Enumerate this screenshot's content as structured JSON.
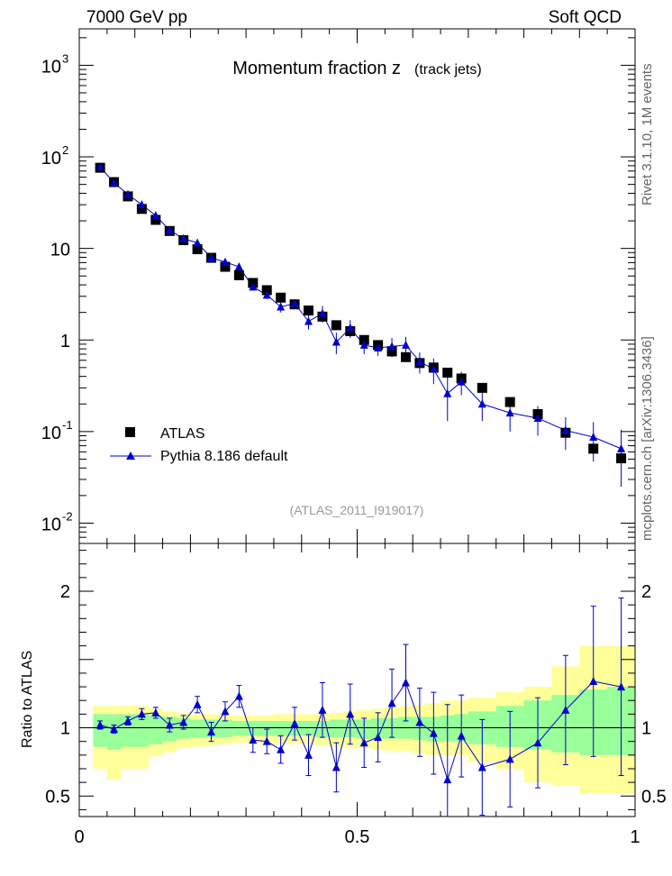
{
  "header": {
    "left": "7000 GeV pp",
    "right": "Soft QCD"
  },
  "side": {
    "rivet": "Rivet 3.1.10,  1M events",
    "site": "mcplots.cern.ch [arXiv:1306.3436]"
  },
  "chart_data": [
    {
      "type": "scatter",
      "title": "Momentum fraction z",
      "subtitle": "(track jets)",
      "annotation": "(ATLAS_2011_I919017)",
      "yscale": "log",
      "xlim": [
        0,
        1
      ],
      "ylim": [
        0.006,
        2500
      ],
      "y_tick_labels": [
        {
          "base": "10",
          "exp": "-2",
          "value": 0.01
        },
        {
          "base": "10",
          "exp": "-1",
          "value": 0.1
        },
        {
          "base": "1",
          "exp": "",
          "value": 1
        },
        {
          "base": "10",
          "exp": "",
          "value": 10
        },
        {
          "base": "10",
          "exp": "2",
          "value": 100
        },
        {
          "base": "10",
          "exp": "3",
          "value": 1000
        }
      ],
      "legend_position": "bottom-left",
      "x": [
        0.0375,
        0.0625,
        0.0875,
        0.1125,
        0.1375,
        0.1625,
        0.1875,
        0.2125,
        0.2375,
        0.2625,
        0.2875,
        0.3125,
        0.3375,
        0.3625,
        0.3875,
        0.4125,
        0.4375,
        0.4625,
        0.4875,
        0.5125,
        0.5375,
        0.5625,
        0.5875,
        0.6125,
        0.6375,
        0.6625,
        0.6875,
        0.725,
        0.775,
        0.825,
        0.875,
        0.925,
        0.975
      ],
      "series": [
        {
          "name": "ATLAS",
          "color": "#000000",
          "marker": "square",
          "values": [
            76,
            53,
            37,
            27,
            20.5,
            15.5,
            12.3,
            9.8,
            7.9,
            6.3,
            5.1,
            4.2,
            3.5,
            2.9,
            2.45,
            2.1,
            1.8,
            1.45,
            1.25,
            1.0,
            0.88,
            0.75,
            0.65,
            0.56,
            0.5,
            0.44,
            0.38,
            0.3,
            0.21,
            0.155,
            0.097,
            0.065,
            0.051
          ]
        },
        {
          "name": "Pythia 8.186 default",
          "color": "#0000cc",
          "marker": "triangle",
          "values": [
            78,
            52,
            39,
            30,
            22.8,
            15.8,
            12.8,
            11.5,
            7.9,
            7.1,
            6.3,
            3.8,
            3.1,
            2.3,
            2.5,
            1.6,
            1.95,
            0.95,
            1.35,
            0.88,
            0.82,
            0.85,
            0.88,
            0.58,
            0.48,
            0.26,
            0.35,
            0.2,
            0.16,
            0.14,
            0.103,
            0.087,
            0.065
          ],
          "err_low": [
            3,
            2,
            1.5,
            1.2,
            1,
            0.8,
            0.7,
            0.6,
            0.5,
            0.4,
            0.4,
            0.35,
            0.3,
            0.3,
            0.3,
            0.3,
            0.4,
            0.25,
            0.3,
            0.18,
            0.15,
            0.2,
            0.2,
            0.15,
            0.15,
            0.13,
            0.1,
            0.07,
            0.06,
            0.05,
            0.04,
            0.04,
            0.04
          ],
          "err_high": [
            3,
            2,
            1.5,
            1.2,
            1,
            0.8,
            0.7,
            0.6,
            0.5,
            0.4,
            0.4,
            0.35,
            0.3,
            0.3,
            0.3,
            0.3,
            0.4,
            0.25,
            0.3,
            0.18,
            0.15,
            0.2,
            0.2,
            0.15,
            0.15,
            0.13,
            0.1,
            0.07,
            0.06,
            0.05,
            0.04,
            0.04,
            0.04
          ]
        }
      ]
    },
    {
      "type": "scatter",
      "ylabel": "Ratio to ATLAS",
      "xlim": [
        0,
        1
      ],
      "ylim": [
        0.35,
        2.35
      ],
      "x_ticks": [
        {
          "value": 0,
          "label": "0"
        },
        {
          "value": 0.5,
          "label": "0.5"
        },
        {
          "value": 1,
          "label": "1"
        }
      ],
      "y_ticks": [
        {
          "value": 0.5,
          "label": "0.5"
        },
        {
          "value": 1,
          "label": "1"
        },
        {
          "value": 2,
          "label": "2"
        }
      ],
      "band_edges": [
        0.025,
        0.05,
        0.075,
        0.1,
        0.125,
        0.15,
        0.175,
        0.2,
        0.225,
        0.25,
        0.275,
        0.3,
        0.325,
        0.35,
        0.375,
        0.4,
        0.425,
        0.45,
        0.475,
        0.5,
        0.525,
        0.55,
        0.575,
        0.6,
        0.625,
        0.65,
        0.675,
        0.7,
        0.75,
        0.8,
        0.85,
        0.9,
        0.95,
        1.0
      ],
      "bands": {
        "yellow": {
          "color": "#ffff99",
          "low": [
            0.7,
            0.62,
            0.7,
            0.7,
            0.79,
            0.82,
            0.85,
            0.86,
            0.87,
            0.88,
            0.89,
            0.89,
            0.88,
            0.88,
            0.88,
            0.88,
            0.87,
            0.86,
            0.85,
            0.85,
            0.84,
            0.83,
            0.83,
            0.81,
            0.8,
            0.8,
            0.8,
            0.75,
            0.7,
            0.6,
            0.58,
            0.52,
            0.52
          ],
          "high": [
            1.16,
            1.16,
            1.16,
            1.16,
            1.14,
            1.12,
            1.11,
            1.1,
            1.1,
            1.1,
            1.09,
            1.09,
            1.09,
            1.1,
            1.1,
            1.1,
            1.1,
            1.11,
            1.12,
            1.13,
            1.14,
            1.15,
            1.16,
            1.17,
            1.18,
            1.2,
            1.2,
            1.22,
            1.26,
            1.3,
            1.45,
            1.6,
            1.6
          ]
        },
        "green": {
          "color": "#99ff99",
          "low": [
            0.86,
            0.84,
            0.86,
            0.86,
            0.88,
            0.9,
            0.92,
            0.93,
            0.93,
            0.93,
            0.94,
            0.94,
            0.94,
            0.94,
            0.94,
            0.94,
            0.93,
            0.93,
            0.93,
            0.92,
            0.92,
            0.92,
            0.92,
            0.91,
            0.9,
            0.9,
            0.9,
            0.88,
            0.86,
            0.84,
            0.82,
            0.8,
            0.8
          ],
          "high": [
            1.1,
            1.1,
            1.1,
            1.1,
            1.09,
            1.08,
            1.07,
            1.06,
            1.06,
            1.06,
            1.05,
            1.05,
            1.05,
            1.05,
            1.05,
            1.05,
            1.05,
            1.06,
            1.06,
            1.06,
            1.07,
            1.07,
            1.08,
            1.08,
            1.08,
            1.09,
            1.1,
            1.12,
            1.16,
            1.2,
            1.24,
            1.28,
            1.3
          ]
        }
      },
      "series": [
        {
          "name": "Pythia 8.186 default",
          "color": "#0000cc",
          "x": [
            0.0375,
            0.0625,
            0.0875,
            0.1125,
            0.1375,
            0.1625,
            0.1875,
            0.2125,
            0.2375,
            0.2625,
            0.2875,
            0.3125,
            0.3375,
            0.3625,
            0.3875,
            0.4125,
            0.4375,
            0.4625,
            0.4875,
            0.5125,
            0.5375,
            0.5625,
            0.5875,
            0.6125,
            0.6375,
            0.6625,
            0.6875,
            0.725,
            0.775,
            0.825,
            0.875,
            0.925,
            0.975
          ],
          "values": [
            1.02,
            0.99,
            1.05,
            1.1,
            1.11,
            1.02,
            1.04,
            1.17,
            0.97,
            1.12,
            1.23,
            0.91,
            0.9,
            0.84,
            1.03,
            0.8,
            1.13,
            0.71,
            1.1,
            0.89,
            0.93,
            1.18,
            1.33,
            1.04,
            0.96,
            0.62,
            0.94,
            0.71,
            0.77,
            0.89,
            1.13,
            1.34,
            1.3
          ],
          "err": [
            0.03,
            0.03,
            0.03,
            0.04,
            0.04,
            0.05,
            0.05,
            0.06,
            0.07,
            0.07,
            0.08,
            0.09,
            0.09,
            0.1,
            0.12,
            0.15,
            0.2,
            0.18,
            0.22,
            0.18,
            0.18,
            0.25,
            0.28,
            0.25,
            0.3,
            0.55,
            0.3,
            0.35,
            0.35,
            0.33,
            0.4,
            0.55,
            0.65
          ]
        }
      ]
    }
  ]
}
